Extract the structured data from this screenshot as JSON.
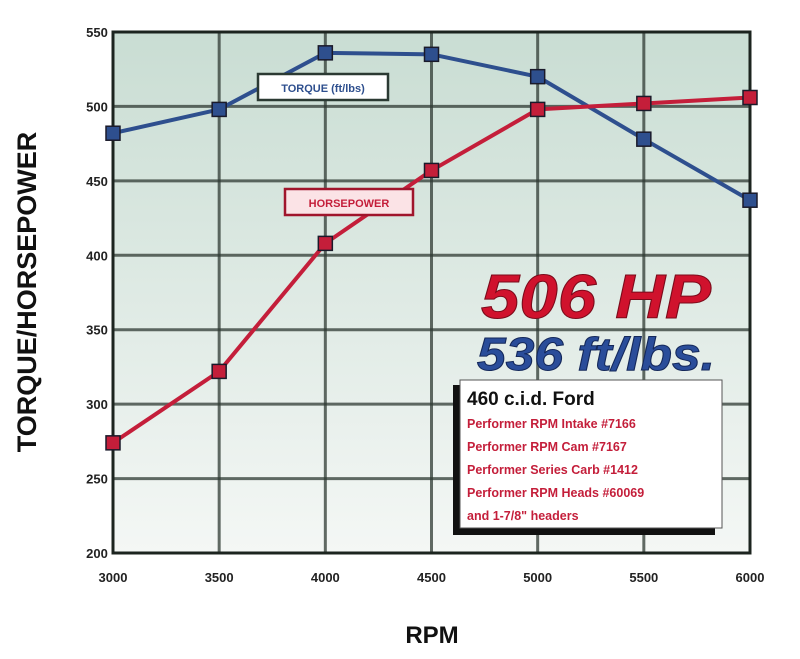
{
  "chart_data": {
    "type": "line",
    "title": "",
    "xlabel": "RPM",
    "ylabel": "TORQUE/HORSEPOWER",
    "xlim": [
      3000,
      6000
    ],
    "ylim": [
      200,
      550
    ],
    "x_ticks": [
      "3000",
      "3500",
      "4000",
      "4500",
      "5000",
      "5500",
      "6000"
    ],
    "y_ticks": [
      "200",
      "250",
      "300",
      "350",
      "400",
      "450",
      "500",
      "550"
    ],
    "grid": true,
    "x": [
      3000,
      3500,
      4000,
      4500,
      5000,
      5500,
      6000
    ],
    "series": [
      {
        "name": "TORQUE (ft/lbs)",
        "color": "#2e4f8e",
        "values": [
          482,
          498,
          536,
          535,
          520,
          478,
          437
        ]
      },
      {
        "name": "HORSEPOWER",
        "color": "#c41e3a",
        "values": [
          274,
          322,
          408,
          457,
          498,
          502,
          506
        ]
      }
    ],
    "annotations": {
      "peak_hp": "506 HP",
      "peak_torque": "536 ft/lbs.",
      "spec_title": "460 c.i.d. Ford",
      "spec_lines": [
        "Performer RPM Intake #7166",
        "Performer RPM Cam #7167",
        "Performer Series Carb #1412",
        "Performer RPM Heads #60069",
        "and 1-7/8\" headers"
      ]
    },
    "colors": {
      "plot_bg_top": "#c9ddd3",
      "plot_bg_bottom": "#f4f7f5",
      "grid": "#2f3a33"
    }
  }
}
